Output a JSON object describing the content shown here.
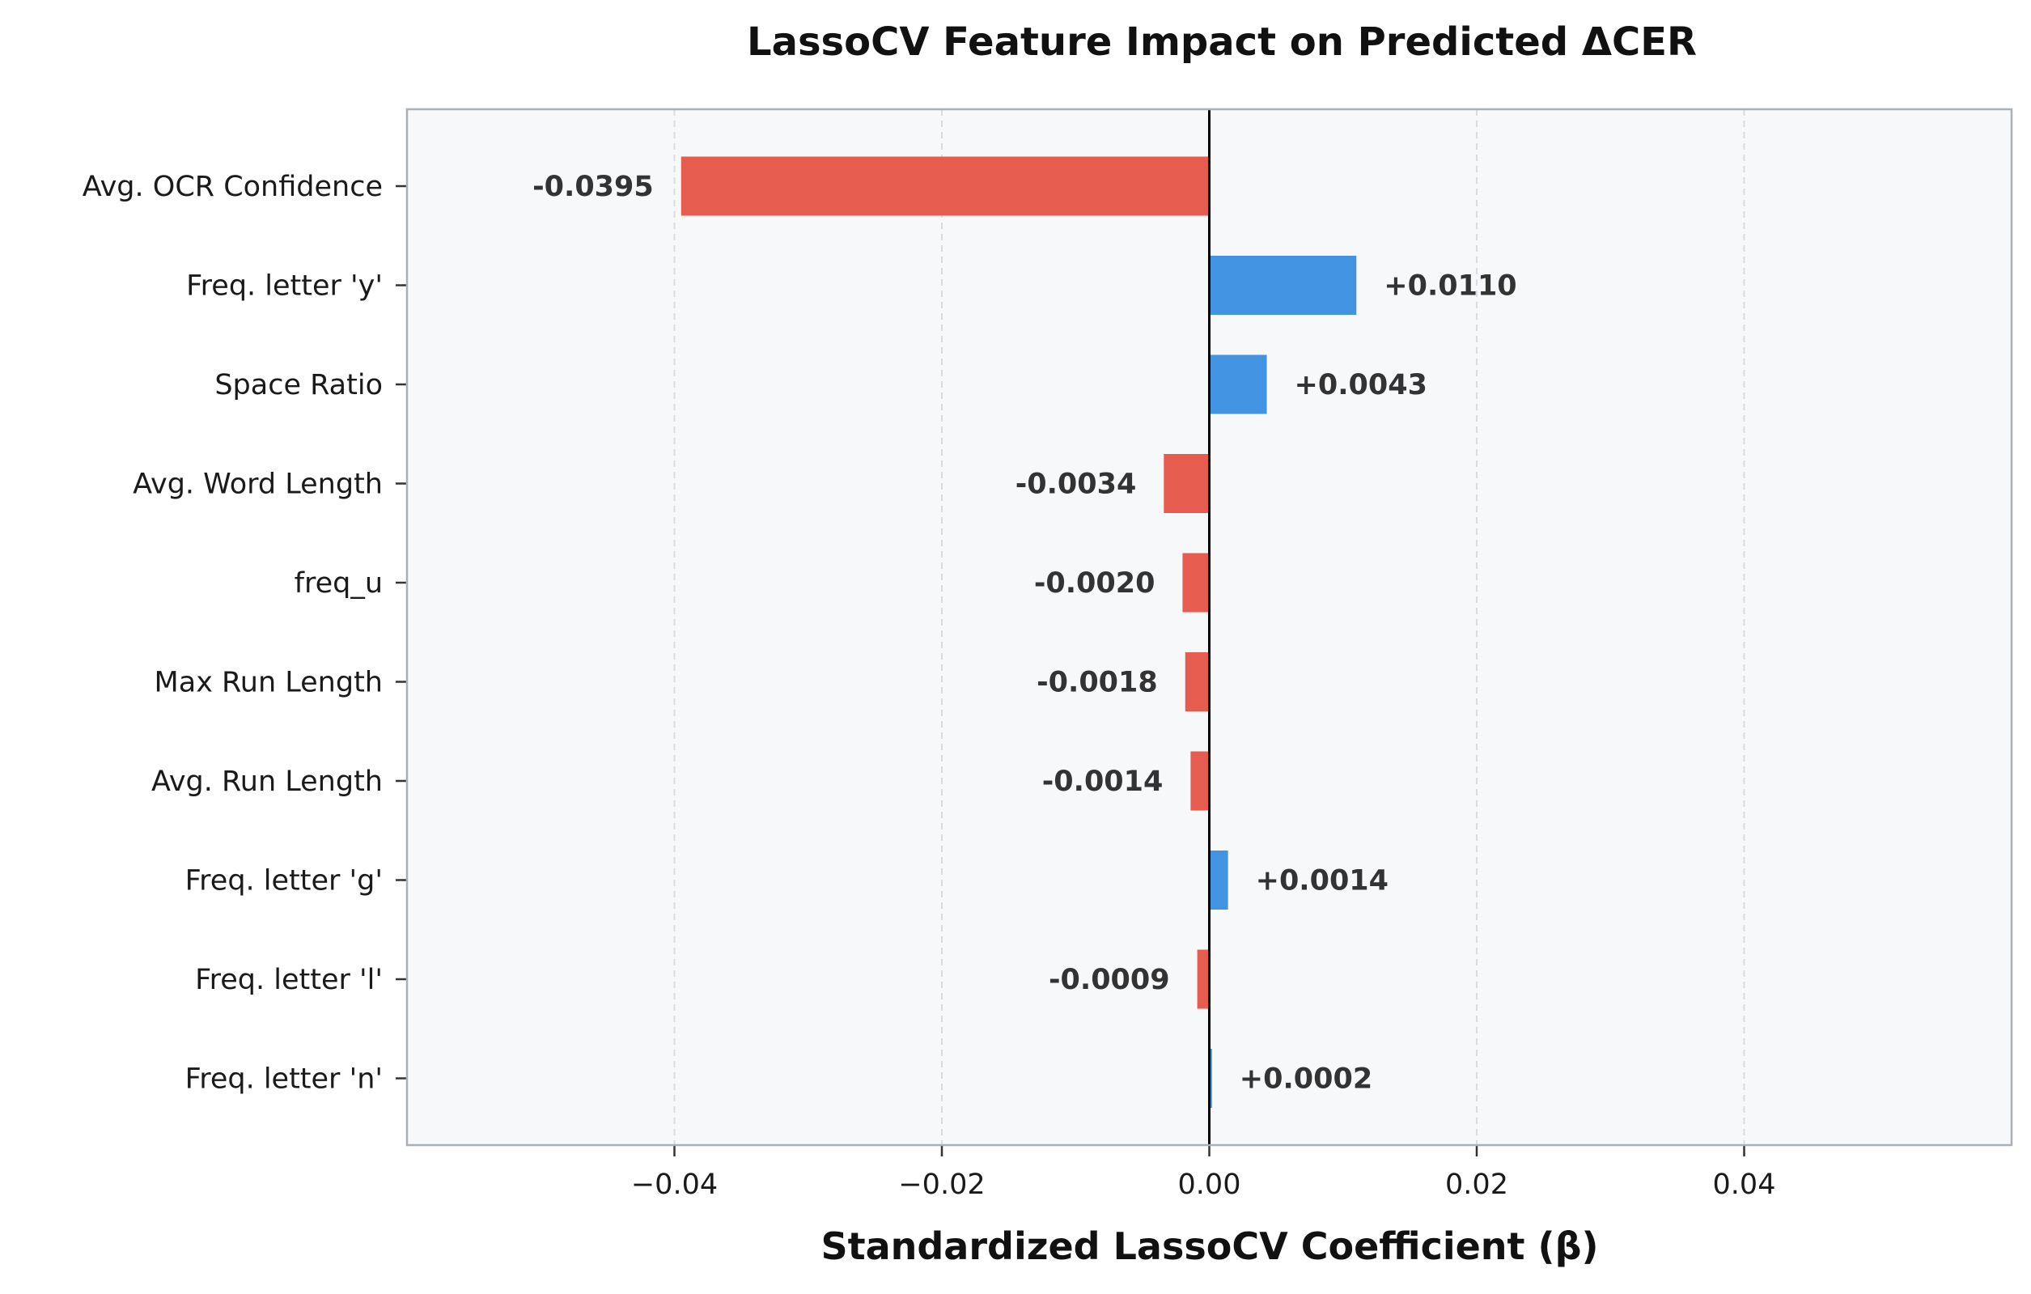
{
  "chart_data": {
    "type": "bar",
    "orientation": "horizontal",
    "title": "LassoCV Feature Impact on Predicted ΔCER",
    "xlabel": "Standardized LassoCV Coefficient (β)",
    "ylabel": "",
    "xlim": [
      -0.06,
      0.06
    ],
    "xticks": [
      -0.04,
      -0.02,
      0.0,
      0.02,
      0.04
    ],
    "xtick_labels": [
      "−0.04",
      "−0.02",
      "0.00",
      "0.02",
      "0.04"
    ],
    "grid": "vertical dashed",
    "categories": [
      "Avg. OCR Confidence",
      "Freq. letter 'y'",
      "Space Ratio",
      "Avg. Word Length",
      "freq_u",
      "Max Run Length",
      "Avg. Run Length",
      "Freq. letter 'g'",
      "Freq. letter 'l'",
      "Freq. letter 'n'"
    ],
    "values": [
      -0.0395,
      0.011,
      0.0043,
      -0.0034,
      -0.002,
      -0.0018,
      -0.0014,
      0.0014,
      -0.0009,
      0.0002
    ],
    "data_labels": [
      "-0.0395",
      "+0.0110",
      "+0.0043",
      "-0.0034",
      "-0.0020",
      "-0.0018",
      "-0.0014",
      "+0.0014",
      "-0.0009",
      "+0.0002"
    ],
    "colors": {
      "negative": "#e65c4f",
      "positive": "#4393e3",
      "plot_background": "#f7f8fa",
      "frame": "#aab0b8",
      "grid": "#d8dce2",
      "zero_line": "#000000"
    }
  }
}
